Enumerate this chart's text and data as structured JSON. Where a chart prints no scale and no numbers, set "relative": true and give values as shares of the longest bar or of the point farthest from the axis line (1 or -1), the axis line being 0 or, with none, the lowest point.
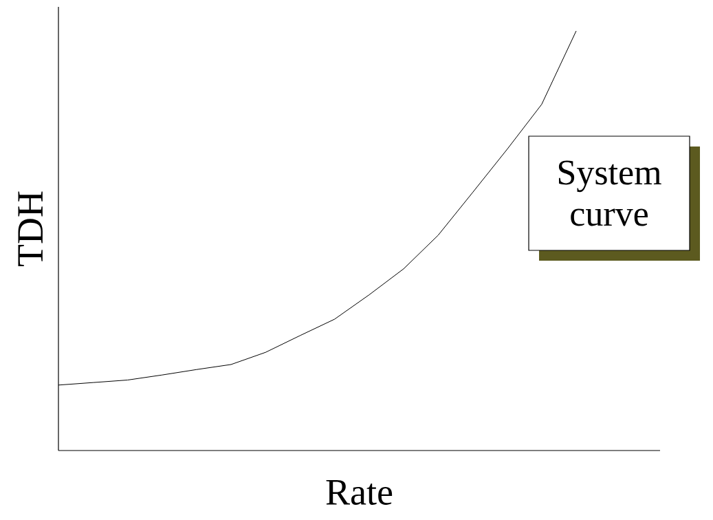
{
  "chart_data": {
    "type": "line",
    "relative": true,
    "xlabel": "Rate",
    "ylabel": "TDH",
    "color": "#000000",
    "categories": [
      null,
      null,
      null,
      null,
      null,
      null,
      null,
      null,
      null,
      null,
      null,
      null,
      null,
      null,
      null,
      null
    ],
    "values": [
      0.156,
      0.162,
      0.168,
      0.18,
      0.193,
      0.205,
      0.234,
      0.274,
      0.313,
      0.371,
      0.433,
      0.513,
      0.615,
      0.718,
      0.825,
      1.0
    ],
    "annotations": [
      "System curve"
    ]
  }
}
